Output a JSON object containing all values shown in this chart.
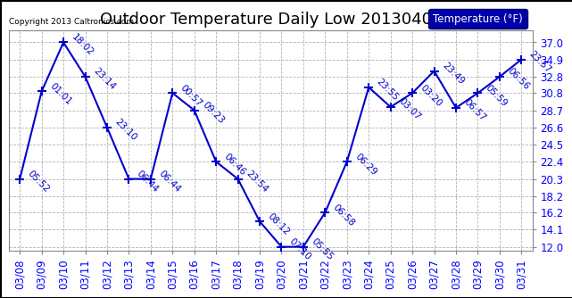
{
  "title": "Outdoor Temperature Daily Low 20130401",
  "copyright": "Copyright 2013 Caltronics.com",
  "legend_label": "Temperature (°F)",
  "dates": [
    "03/08",
    "03/09",
    "03/10",
    "03/11",
    "03/12",
    "03/13",
    "03/14",
    "03/15",
    "03/16",
    "03/17",
    "03/18",
    "03/19",
    "03/20",
    "03/21",
    "03/22",
    "03/23",
    "03/24",
    "03/25",
    "03/26",
    "03/27",
    "03/28",
    "03/29",
    "03/30",
    "03/31"
  ],
  "values": [
    20.3,
    31.0,
    37.0,
    32.8,
    26.6,
    20.3,
    20.3,
    30.8,
    28.7,
    22.4,
    20.3,
    15.1,
    12.0,
    12.0,
    16.2,
    22.4,
    31.5,
    29.1,
    30.8,
    33.5,
    29.0,
    30.8,
    32.8,
    34.9
  ],
  "time_labels": [
    "05:52",
    "01:01",
    "18:02",
    "23:14",
    "23:10",
    "06:44",
    "06:44",
    "00:57",
    "09:23",
    "06:46",
    "23:54",
    "08:12",
    "07:10",
    "05:55",
    "06:58",
    "06:29",
    "23:55",
    "03:07",
    "03:20",
    "23:49",
    "06:57",
    "05:59",
    "06:56",
    "23:57"
  ],
  "yticks": [
    12.0,
    14.1,
    16.2,
    18.2,
    20.3,
    22.4,
    24.5,
    26.6,
    28.7,
    30.8,
    32.8,
    34.9,
    37.0
  ],
  "ylim": [
    11.5,
    38.5
  ],
  "line_color": "#0000CC",
  "marker_color": "#000033",
  "label_color": "#0000CC",
  "bg_color": "#ffffff",
  "plot_bg_color": "#ffffff",
  "grid_color": "#aaaaaa",
  "title_fontsize": 13,
  "tick_fontsize": 8.5,
  "label_fontsize": 7.5,
  "legend_bg": "#0000AA",
  "legend_fg": "#ffffff"
}
